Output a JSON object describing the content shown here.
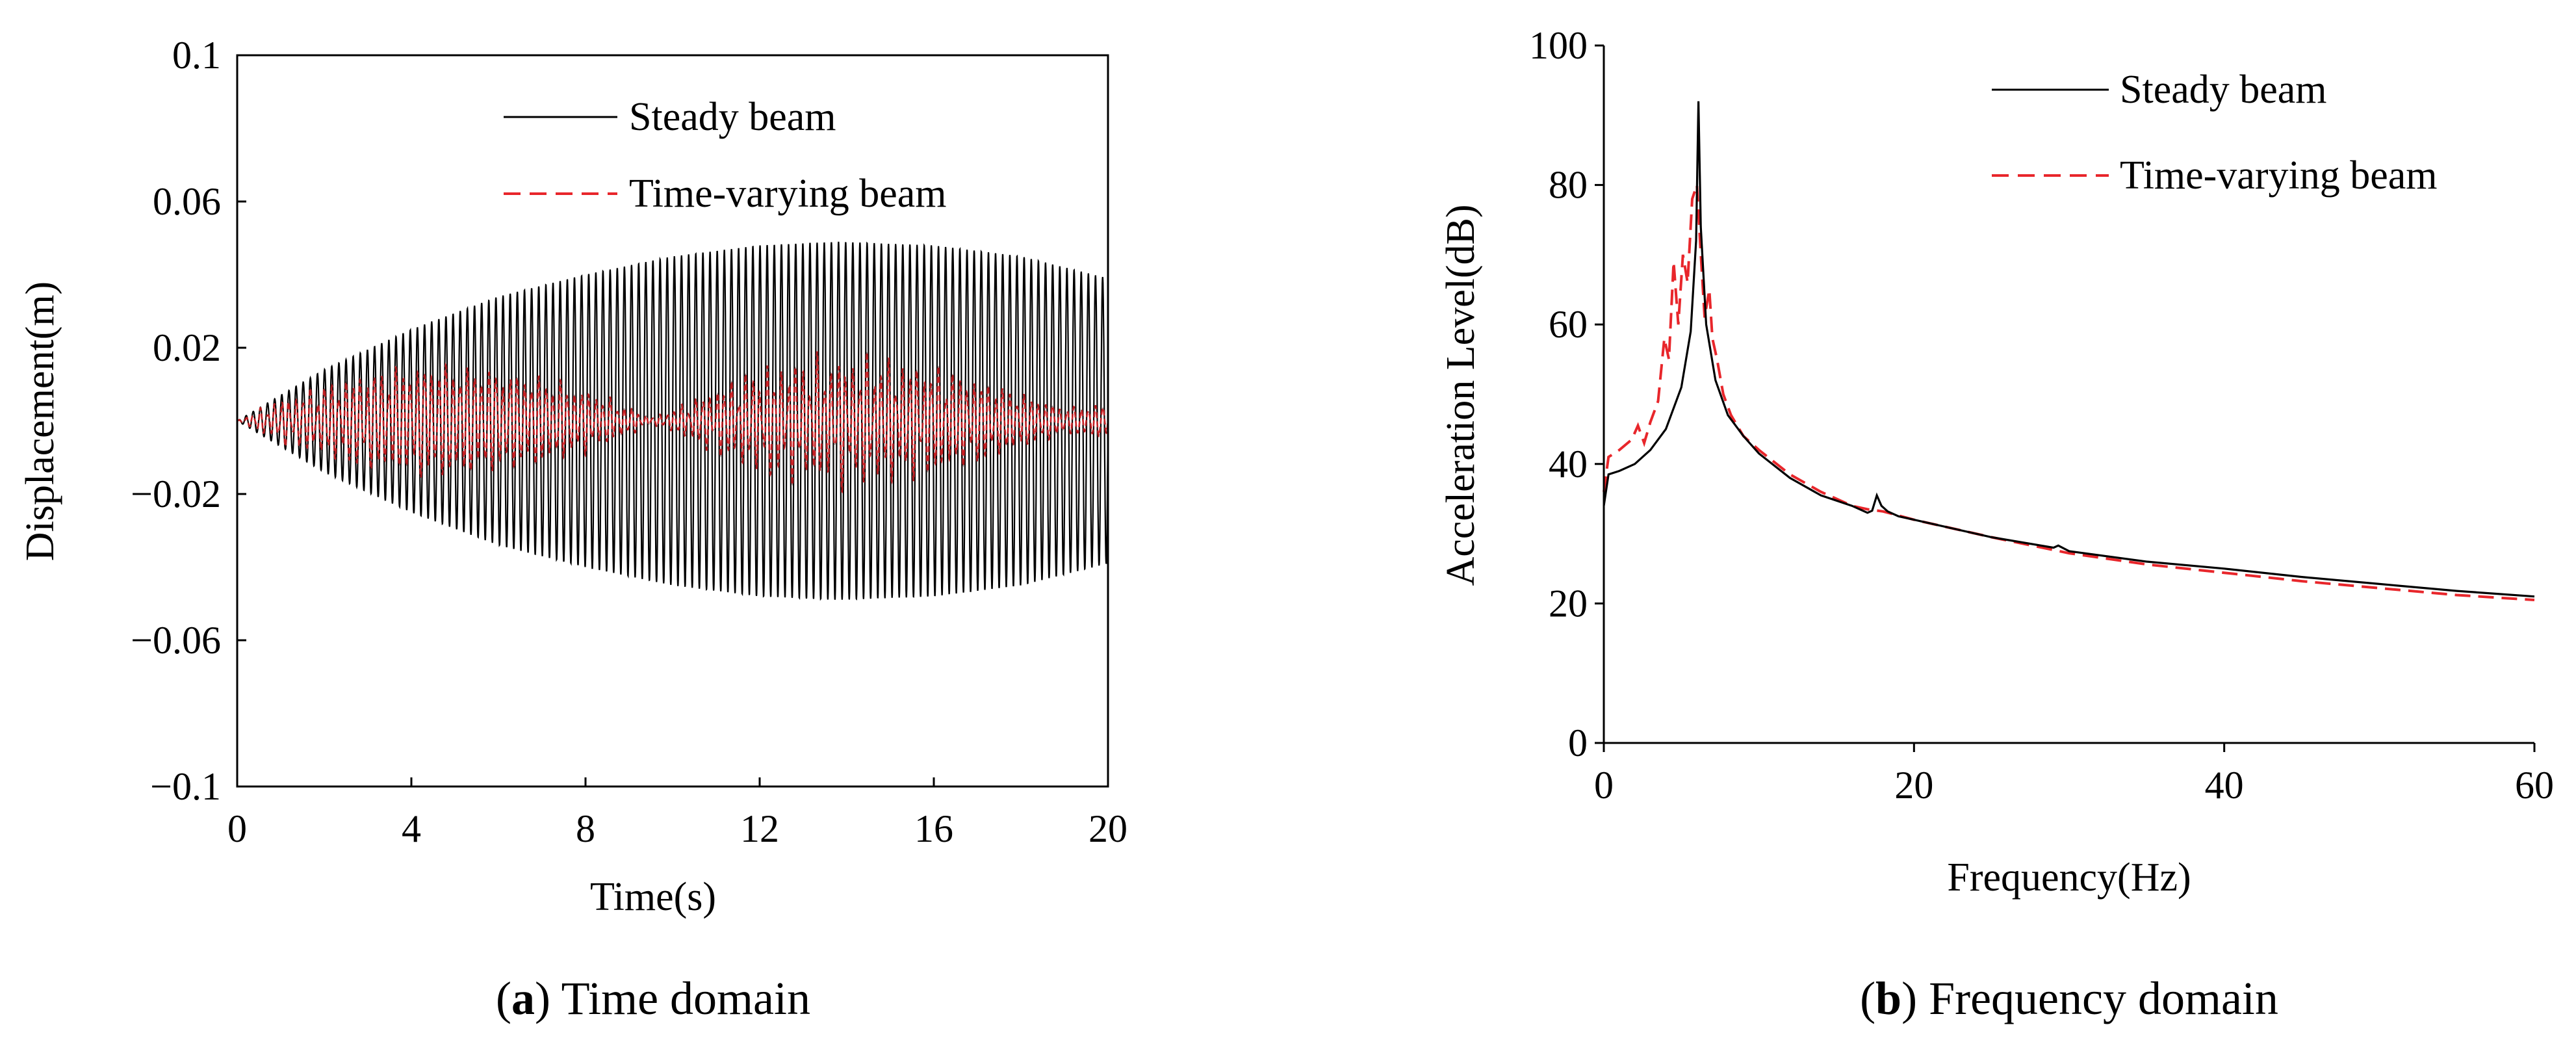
{
  "colors": {
    "steady": "#000000",
    "timevarying": "#e8262b"
  },
  "chart_data": [
    {
      "id": "a",
      "type": "line",
      "caption_letter": "a",
      "caption_text": " Time domain",
      "xlabel": "Time(s)",
      "ylabel": "Displacement(m)",
      "xlim": [
        0,
        20
      ],
      "ylim": [
        -0.1,
        0.1
      ],
      "xticks": [
        0,
        4,
        8,
        12,
        16,
        20
      ],
      "xtick_labels": [
        "0",
        "4",
        "8",
        "12",
        "16",
        "20"
      ],
      "yticks": [
        0.1,
        0.06,
        0.02,
        -0.02,
        -0.06,
        -0.1
      ],
      "ytick_labels": [
        "0.1",
        "0.06",
        "0.02",
        "−0.02",
        "−0.06",
        "−0.1"
      ],
      "legend_position": "top-center",
      "series": [
        {
          "name": "Steady beam",
          "style": "solid",
          "oscillation_frequency_hz": 6.1,
          "envelope": {
            "t": [
              0,
              2,
              4,
              6,
              8,
              10,
              12,
              13.8,
              16,
              18,
              20
            ],
            "amp": [
              0,
              0.014,
              0.025,
              0.034,
              0.04,
              0.045,
              0.048,
              0.049,
              0.048,
              0.045,
              0.039
            ]
          }
        },
        {
          "name": "Time-varying beam",
          "style": "dashed",
          "oscillation_frequency_hz": 6.1,
          "envelope": {
            "t": [
              0,
              1,
              2,
              3,
              4,
              4.6,
              5.5,
              7,
              8,
              9,
              9.5,
              10,
              11,
              12,
              13,
              14.5,
              16,
              17,
              18,
              19,
              20
            ],
            "amp": [
              0,
              0.006,
              0.01,
              0.014,
              0.016,
              0.017,
              0.016,
              0.013,
              0.009,
              0.004,
              0.001,
              0.003,
              0.009,
              0.014,
              0.016,
              0.017,
              0.015,
              0.012,
              0.008,
              0.004,
              0.005
            ]
          }
        }
      ]
    },
    {
      "id": "b",
      "type": "line",
      "caption_letter": "b",
      "caption_text": " Frequency domain",
      "xlabel": "Frequency(Hz)",
      "ylabel": "Acceleration Level(dB)",
      "xlim": [
        0,
        60
      ],
      "ylim": [
        0,
        100
      ],
      "xticks": [
        0,
        20,
        40,
        60
      ],
      "xtick_labels": [
        "0",
        "20",
        "40",
        "60"
      ],
      "yticks": [
        100,
        80,
        60,
        40,
        20,
        0
      ],
      "ytick_labels": [
        "100",
        "80",
        "60",
        "40",
        "20",
        "0"
      ],
      "legend_position": "top-right",
      "series": [
        {
          "name": "Steady beam",
          "style": "solid",
          "x": [
            0,
            0.3,
            1,
            2,
            3,
            4,
            5,
            5.6,
            5.95,
            6.1,
            6.25,
            6.6,
            7.2,
            8,
            9,
            10,
            12,
            14,
            16,
            17,
            17.3,
            17.6,
            17.9,
            18.3,
            19,
            20,
            25,
            29,
            29.3,
            30,
            35,
            40,
            45,
            50,
            55,
            60
          ],
          "y": [
            34,
            38.5,
            39,
            40,
            42,
            45,
            51,
            59,
            72,
            92,
            74,
            60,
            52,
            47,
            44,
            41.5,
            38,
            35.5,
            34,
            33,
            33.3,
            35.5,
            34,
            33.2,
            32.5,
            32,
            29.5,
            28,
            28.3,
            27.5,
            26,
            25,
            23.8,
            22.8,
            21.8,
            21
          ]
        },
        {
          "name": "Time-varying beam",
          "style": "dashed",
          "x": [
            0,
            0.3,
            1,
            1.8,
            2.2,
            2.6,
            3,
            3.5,
            3.9,
            4.2,
            4.5,
            4.8,
            5.1,
            5.4,
            5.7,
            6.0,
            6.2,
            6.5,
            6.8,
            7.0,
            7.3,
            7.7,
            8.2,
            9,
            10,
            12,
            14,
            16,
            17,
            18,
            19,
            20,
            25,
            30,
            35,
            40,
            45,
            50,
            55,
            60
          ],
          "y": [
            36,
            41,
            42,
            43.5,
            45.5,
            43,
            46,
            49,
            58,
            55,
            69,
            60,
            70,
            66,
            78,
            80,
            72,
            61,
            65,
            58,
            55,
            50,
            47,
            44,
            42,
            38.5,
            36,
            34,
            33.5,
            33.2,
            32.6,
            32,
            29.5,
            27.2,
            25.6,
            24.4,
            23.2,
            22.2,
            21.2,
            20.5
          ]
        }
      ]
    }
  ]
}
